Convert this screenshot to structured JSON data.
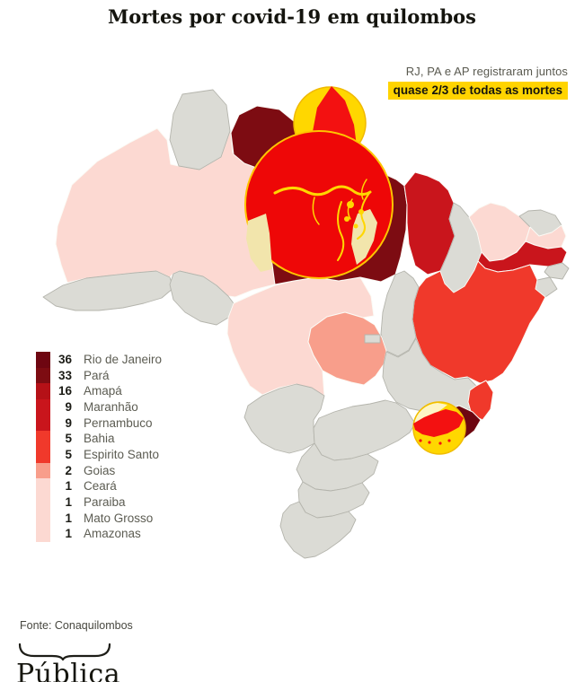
{
  "title": "Mortes por covid-19 em quilombos",
  "annotation": {
    "line1": "RJ, PA e AP registraram juntos",
    "line2": "quase 2/3 de todas as mortes",
    "highlight_color": "#ffd400"
  },
  "legend": {
    "items": [
      {
        "value": "36",
        "name": "Rio de Janeiro",
        "color": "#6e0611"
      },
      {
        "value": "33",
        "name": "Pará",
        "color": "#7d0c12"
      },
      {
        "value": "16",
        "name": "Amapá",
        "color": "#b51117"
      },
      {
        "value": "9",
        "name": "Maranhão",
        "color": "#c9151c"
      },
      {
        "value": "9",
        "name": "Pernambuco",
        "color": "#c9151c"
      },
      {
        "value": "5",
        "name": "Bahia",
        "color": "#f0392b"
      },
      {
        "value": "5",
        "name": "Espirito Santo",
        "color": "#f0392b"
      },
      {
        "value": "2",
        "name": "Goias",
        "color": "#f89e8b"
      },
      {
        "value": "1",
        "name": "Ceará",
        "color": "#fcd9d2"
      },
      {
        "value": "1",
        "name": "Paraiba",
        "color": "#fcd9d2"
      },
      {
        "value": "1",
        "name": "Mato Grosso",
        "color": "#fcd9d2"
      },
      {
        "value": "1",
        "name": "Amazonas",
        "color": "#fcd9d2"
      }
    ]
  },
  "source": {
    "text": "Fonte: Conaquilombos"
  },
  "logo": {
    "text": "Pública"
  },
  "palette": {
    "no_data": "#dbdbd5",
    "d1": "#fcd9d2",
    "d2": "#f89e8b",
    "d5": "#f0392b",
    "d9": "#c9151c",
    "d16": "#b51117",
    "d33": "#7d0c12",
    "d36": "#6e0611",
    "circle_fill": "#ffd700",
    "circle_stroke": "#f0b900",
    "circle_red": "#ee0707",
    "overlap_khaki": "#f2e5ac",
    "overlap_cream": "#fdf5c6",
    "state_red_overlay": "#f31111"
  },
  "chart_data": {
    "type": "choropleth_map",
    "region": "Brasil (estados)",
    "title": "Mortes por covid-19 em quilombos",
    "unit": "mortes",
    "values": [
      {
        "state": "Rio de Janeiro",
        "deaths": 36
      },
      {
        "state": "Pará",
        "deaths": 33
      },
      {
        "state": "Amapá",
        "deaths": 16
      },
      {
        "state": "Maranhão",
        "deaths": 9
      },
      {
        "state": "Pernambuco",
        "deaths": 9
      },
      {
        "state": "Bahia",
        "deaths": 5
      },
      {
        "state": "Espirito Santo",
        "deaths": 5
      },
      {
        "state": "Goias",
        "deaths": 2
      },
      {
        "state": "Ceará",
        "deaths": 1
      },
      {
        "state": "Paraiba",
        "deaths": 1
      },
      {
        "state": "Mato Grosso",
        "deaths": 1
      },
      {
        "state": "Amazonas",
        "deaths": 1
      }
    ],
    "no_data_states_color": "#dbdbd5",
    "highlighted_states": [
      "RJ",
      "PA",
      "AP"
    ],
    "highlight_marker": "yellow circles over Amapá, Pará and Rio de Janeiro",
    "annotation": "RJ, PA e AP registraram juntos quase 2/3 de todas as mortes",
    "legend_position": "middle-left",
    "source": "Fonte: Conaquilombos"
  }
}
